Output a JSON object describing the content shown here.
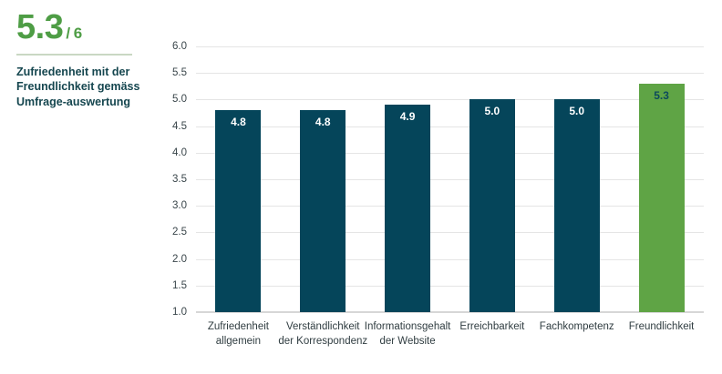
{
  "header": {
    "score": "5.3",
    "score_suffix": "/ 6",
    "description": "Zufriedenheit mit der Freundlichkeit gemäss Umfrage-auswertung"
  },
  "colors": {
    "accent_green": "#4e9d45",
    "bar_teal": "#05455a",
    "bar_highlight_green": "#5fa445",
    "value_label_white": "#ffffff",
    "value_label_dark": "#0d4a5c",
    "gridline": "#e5e5e5",
    "baseline": "#d7d7d7",
    "text_dark_teal": "#15464f"
  },
  "chart_data": {
    "type": "bar",
    "categories": [
      "Zufriedenheit\nallgemein",
      "Verständlichkeit\nder Korrespondenz",
      "Informationsgehalt\nder Website",
      "Erreichbarkeit",
      "Fachkompetenz",
      "Freundlichkeit"
    ],
    "values": [
      4.8,
      4.8,
      4.9,
      5.0,
      5.0,
      5.3
    ],
    "value_labels": [
      "4.8",
      "4.8",
      "4.9",
      "5.0",
      "5.0",
      "5.3"
    ],
    "highlight_index": 5,
    "title": "",
    "xlabel": "",
    "ylabel": "",
    "ylim": [
      1.0,
      6.0
    ],
    "yticks": [
      "6.0",
      "5.5",
      "5.0",
      "4.5",
      "4.0",
      "3.5",
      "3.0",
      "2.5",
      "2.0",
      "1.5",
      "1.0"
    ],
    "grid": true,
    "legend": false
  }
}
